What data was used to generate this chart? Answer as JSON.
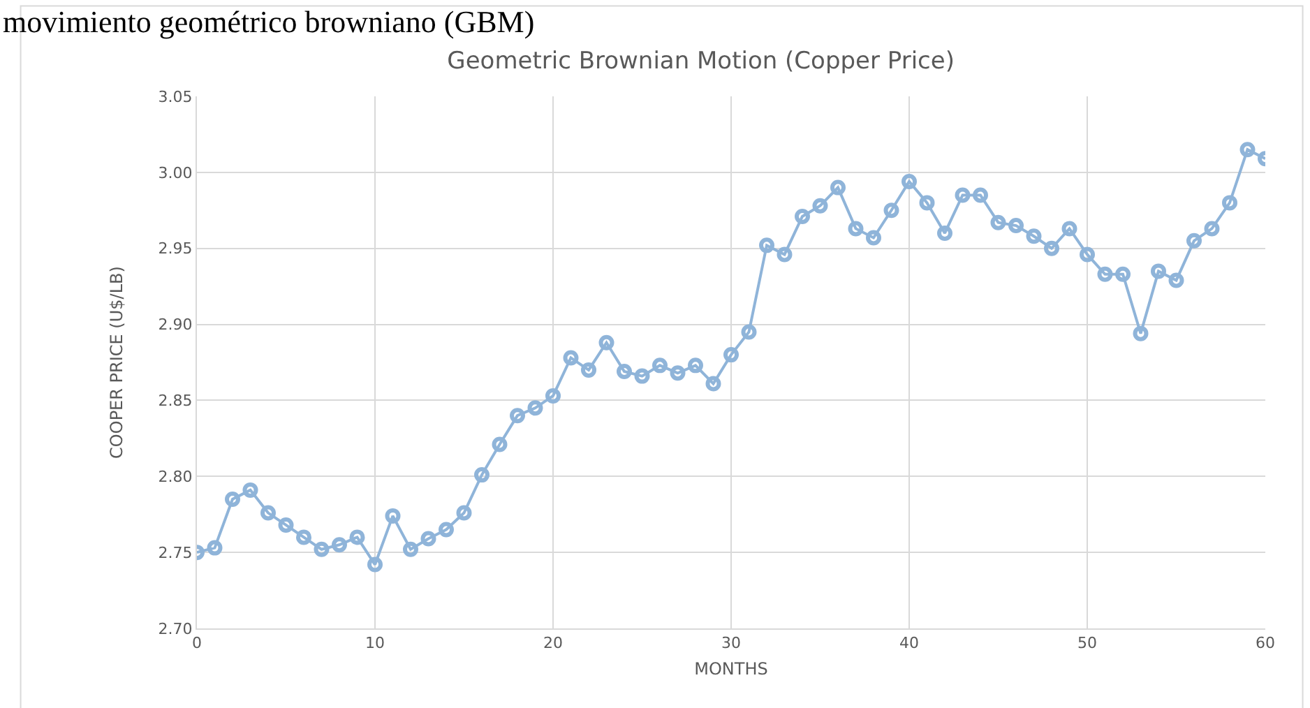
{
  "chart_data": {
    "type": "line",
    "title": "Geometric Brownian Motion (Copper Price)",
    "xlabel": "MONTHS",
    "ylabel": "COOPER PRICE (U$/LB)",
    "annotations": [
      "movimiento geométrico browniano (GBM)"
    ],
    "x": [
      0,
      1,
      2,
      3,
      4,
      5,
      6,
      7,
      8,
      9,
      10,
      11,
      12,
      13,
      14,
      15,
      16,
      17,
      18,
      19,
      20,
      21,
      22,
      23,
      24,
      25,
      26,
      27,
      28,
      29,
      30,
      31,
      32,
      33,
      34,
      35,
      36,
      37,
      38,
      39,
      40,
      41,
      42,
      43,
      44,
      45,
      46,
      47,
      48,
      49,
      50,
      51,
      52,
      53,
      54,
      55,
      56,
      57,
      58,
      59,
      60
    ],
    "series": [
      {
        "color": "#8fb4d9",
        "values": [
          2.75,
          2.753,
          2.785,
          2.791,
          2.776,
          2.768,
          2.76,
          2.752,
          2.755,
          2.76,
          2.742,
          2.774,
          2.752,
          2.759,
          2.765,
          2.776,
          2.801,
          2.821,
          2.84,
          2.845,
          2.853,
          2.878,
          2.87,
          2.888,
          2.869,
          2.866,
          2.873,
          2.868,
          2.873,
          2.861,
          2.88,
          2.895,
          2.952,
          2.946,
          2.971,
          2.978,
          2.99,
          2.963,
          2.957,
          2.975,
          2.994,
          2.98,
          2.96,
          2.985,
          2.985,
          2.967,
          2.965,
          2.958,
          2.95,
          2.963,
          2.946,
          2.933,
          2.933,
          2.894,
          2.935,
          2.929,
          2.955,
          2.963,
          2.98,
          3.015,
          3.009
        ]
      }
    ],
    "xlim": [
      0,
      60
    ],
    "xticks": [
      0,
      10,
      20,
      30,
      40,
      50,
      60
    ],
    "ylim": [
      2.7,
      3.05
    ],
    "yticks": [
      {
        "value": 2.7,
        "label": "2.70"
      },
      {
        "value": 2.75,
        "label": "2.75"
      },
      {
        "value": 2.8,
        "label": "2.80"
      },
      {
        "value": 2.85,
        "label": "2.85"
      },
      {
        "value": 2.9,
        "label": "2.90"
      },
      {
        "value": 2.95,
        "label": "2.95"
      },
      {
        "value": 3.0,
        "label": "3.00"
      },
      {
        "value": 3.05,
        "label": "3.05"
      }
    ],
    "grid": true,
    "marker": "circle",
    "line_style": "solid"
  }
}
